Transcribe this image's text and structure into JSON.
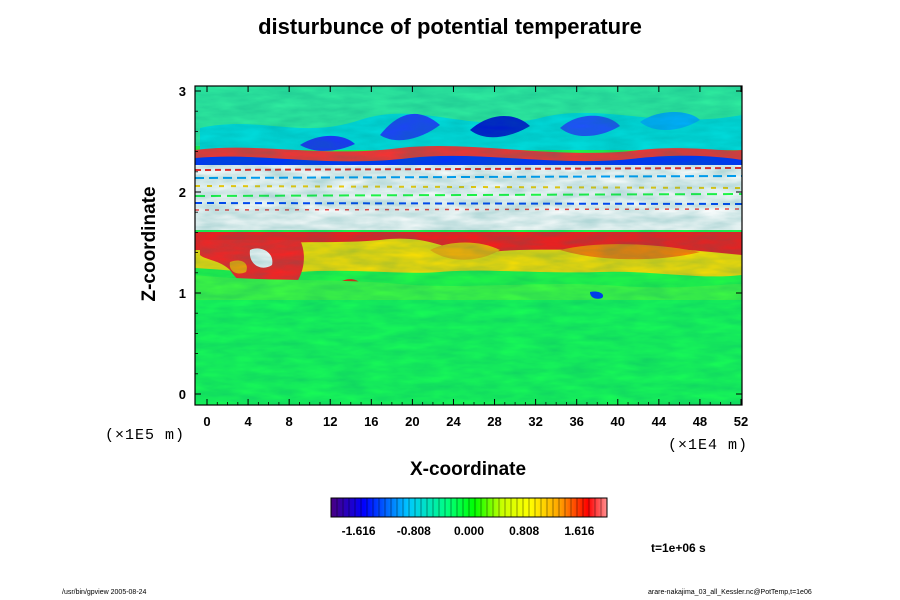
{
  "chart_data": {
    "type": "heatmap",
    "title": "disturbunce of potential temperature",
    "xlabel": "X-coordinate",
    "ylabel": "Z-coordinate",
    "x_ticks": [
      "0",
      "4",
      "8",
      "12",
      "16",
      "20",
      "24",
      "28",
      "32",
      "36",
      "40",
      "44",
      "48",
      "52"
    ],
    "y_ticks": [
      "0",
      "1",
      "2",
      "3"
    ],
    "x_scale_label": "(×1E4 m)",
    "y_scale_label": "(×1E5 m)",
    "xlim": [
      0,
      52
    ],
    "ylim": [
      0,
      3
    ],
    "colorbar": {
      "ticks": [
        "-1.616",
        "-0.808",
        "0.000",
        "0.808",
        "1.616"
      ],
      "range": [
        -2.02,
        2.02
      ],
      "colormap": [
        "#4a0080",
        "#0000ff",
        "#00c8ff",
        "#00ff80",
        "#00ff00",
        "#c8ff00",
        "#ffff00",
        "#ffa000",
        "#ff0000",
        "#ff8080"
      ]
    },
    "annotation": "t=1e+06 s"
  },
  "footer": {
    "left": "/usr/bin/gpview 2005-08-24",
    "right": "arare-nakajima_03_all_Kessler.nc@PotTemp,t=1e06"
  }
}
